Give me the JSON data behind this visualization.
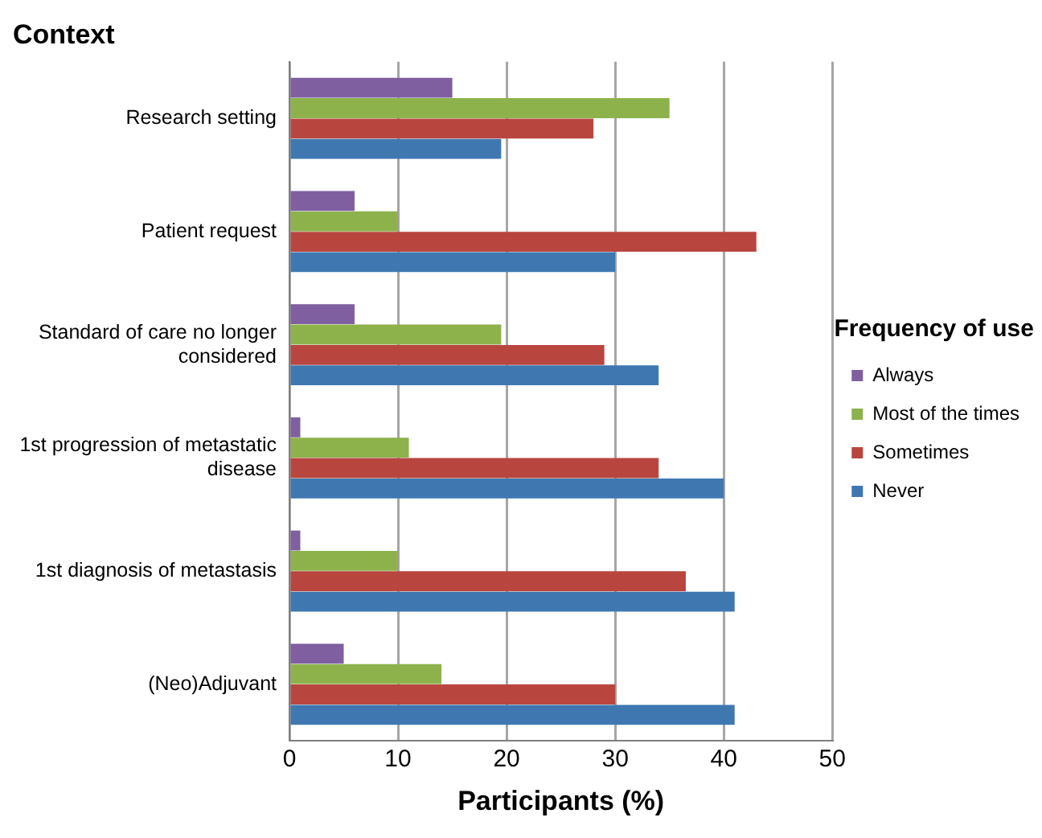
{
  "chart_data": {
    "type": "bar",
    "orientation": "horizontal",
    "title": "Context",
    "xlabel": "Participants (%)",
    "legend_title": "Frequency of use",
    "categories": [
      "Research setting",
      "Patient request",
      "Standard of care no longer considered",
      "1st progression of metastatic disease",
      "1st diagnosis of metastasis",
      "(Neo)Adjuvant"
    ],
    "series": [
      {
        "name": "Always",
        "color": "#7f5fa0",
        "values": [
          15,
          6,
          6,
          1,
          1,
          5
        ]
      },
      {
        "name": "Most of the times",
        "color": "#8db24c",
        "values": [
          35,
          10,
          19.5,
          11,
          10,
          14
        ]
      },
      {
        "name": "Sometimes",
        "color": "#b8463f",
        "values": [
          28,
          43,
          29,
          34,
          36.5,
          30
        ]
      },
      {
        "name": "Never",
        "color": "#3f78b0",
        "values": [
          19.5,
          30,
          34,
          40,
          41,
          41
        ]
      }
    ],
    "xlim": [
      0,
      50
    ],
    "xticks": [
      0,
      10,
      20,
      30,
      40,
      50
    ],
    "grid": "x",
    "legend": "right"
  }
}
